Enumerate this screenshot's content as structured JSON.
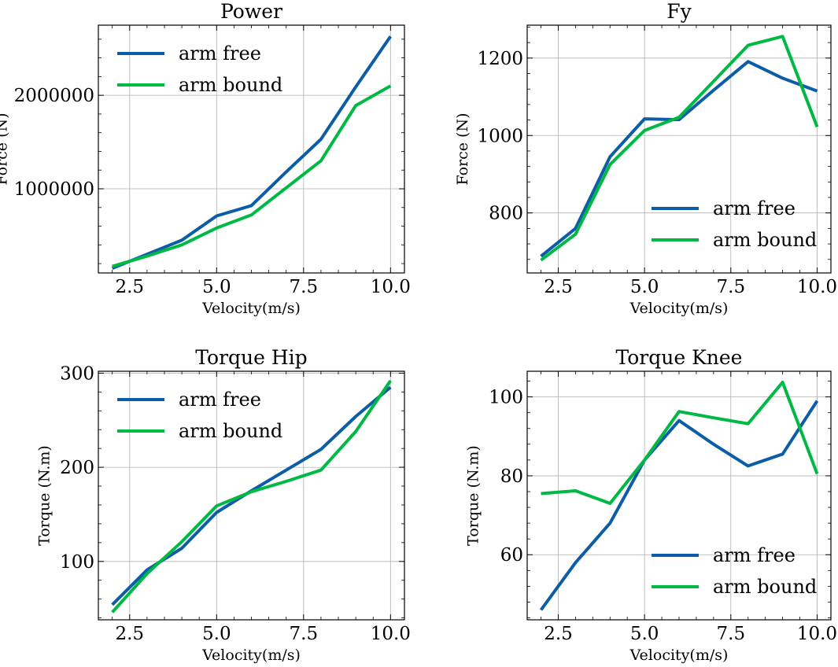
{
  "colors": {
    "arm_free": "#0c5da5",
    "arm_bound": "#00b945"
  },
  "chart_data": [
    {
      "type": "line",
      "title": "Power",
      "xlabel": "Velocity(m/s)",
      "ylabel": "Force (N)",
      "xlim": [
        1.6,
        10.4
      ],
      "ylim": [
        100000,
        2750000
      ],
      "xticks": [
        2.5,
        5.0,
        7.5,
        10.0
      ],
      "xtick_labels": [
        "2.5",
        "5.0",
        "7.5",
        "10.0"
      ],
      "yticks": [
        1000000,
        2000000
      ],
      "ytick_labels": [
        "1000000",
        "2000000"
      ],
      "legend": "upper-left",
      "grid": true,
      "series": [
        {
          "name": "arm free",
          "color": "#0c5da5",
          "x": [
            2,
            3,
            4,
            5,
            6,
            7,
            8,
            9,
            10
          ],
          "y": [
            150000,
            300000,
            450000,
            710000,
            820000,
            1180000,
            1530000,
            2090000,
            2630000
          ]
        },
        {
          "name": "arm bound",
          "color": "#00b945",
          "x": [
            2,
            3,
            4,
            5,
            6,
            7,
            8,
            9,
            10
          ],
          "y": [
            170000,
            280000,
            400000,
            580000,
            720000,
            1010000,
            1300000,
            1890000,
            2100000
          ]
        }
      ]
    },
    {
      "type": "line",
      "title": "Fy",
      "xlabel": "Velocity(m/s)",
      "ylabel": "Force (N)",
      "xlim": [
        1.6,
        10.4
      ],
      "ylim": [
        645,
        1285
      ],
      "xticks": [
        2.5,
        5.0,
        7.5,
        10.0
      ],
      "xtick_labels": [
        "2.5",
        "5.0",
        "7.5",
        "10.0"
      ],
      "yticks": [
        800,
        1000,
        1200
      ],
      "ytick_labels": [
        "800",
        "1000",
        "1200"
      ],
      "legend": "lower-right",
      "grid": true,
      "series": [
        {
          "name": "arm free",
          "color": "#0c5da5",
          "x": [
            2,
            3,
            4,
            5,
            6,
            7,
            8,
            9,
            10
          ],
          "y": [
            688,
            760,
            945,
            1043,
            1041,
            1117,
            1191,
            1148,
            1115
          ]
        },
        {
          "name": "arm bound",
          "color": "#00b945",
          "x": [
            2,
            3,
            4,
            5,
            6,
            7,
            8,
            9,
            10
          ],
          "y": [
            678,
            745,
            925,
            1013,
            1047,
            1140,
            1233,
            1256,
            1022
          ]
        }
      ]
    },
    {
      "type": "line",
      "title": "Torque Hip",
      "xlabel": "Velocity(m/s)",
      "ylabel": "Torque (N.m)",
      "xlim": [
        1.6,
        10.4
      ],
      "ylim": [
        38,
        302
      ],
      "xticks": [
        2.5,
        5.0,
        7.5,
        10.0
      ],
      "xtick_labels": [
        "2.5",
        "5.0",
        "7.5",
        "10.0"
      ],
      "yticks": [
        100,
        200,
        300
      ],
      "ytick_labels": [
        "100",
        "200",
        "300"
      ],
      "legend": "upper-left",
      "grid": true,
      "series": [
        {
          "name": "arm free",
          "color": "#0c5da5",
          "x": [
            2,
            3,
            4,
            5,
            6,
            7,
            8,
            9,
            10
          ],
          "y": [
            54,
            91,
            114,
            152,
            175,
            197,
            219,
            254,
            285
          ]
        },
        {
          "name": "arm bound",
          "color": "#00b945",
          "x": [
            2,
            3,
            4,
            5,
            6,
            7,
            8,
            9,
            10
          ],
          "y": [
            46,
            87,
            121,
            159,
            174,
            185,
            197,
            238,
            292
          ]
        }
      ]
    },
    {
      "type": "line",
      "title": "Torque Knee",
      "xlabel": "Velocity(m/s)",
      "ylabel": "Torque (N.m)",
      "xlim": [
        1.6,
        10.4
      ],
      "ylim": [
        43.5,
        106.5
      ],
      "xticks": [
        2.5,
        5.0,
        7.5,
        10.0
      ],
      "xtick_labels": [
        "2.5",
        "5.0",
        "7.5",
        "10.0"
      ],
      "yticks": [
        60,
        80,
        100
      ],
      "ytick_labels": [
        "60",
        "80",
        "100"
      ],
      "legend": "lower-right",
      "grid": true,
      "series": [
        {
          "name": "arm free",
          "color": "#0c5da5",
          "x": [
            2,
            3,
            4,
            5,
            6,
            7,
            8,
            9,
            10
          ],
          "y": [
            46,
            58,
            68,
            84,
            94,
            88,
            82.5,
            85.5,
            99
          ]
        },
        {
          "name": "arm bound",
          "color": "#00b945",
          "x": [
            2,
            3,
            4,
            5,
            6,
            7,
            8,
            9,
            10
          ],
          "y": [
            75.5,
            76.2,
            73,
            84,
            96.3,
            94.7,
            93.2,
            103.7,
            80.5
          ]
        }
      ]
    }
  ]
}
